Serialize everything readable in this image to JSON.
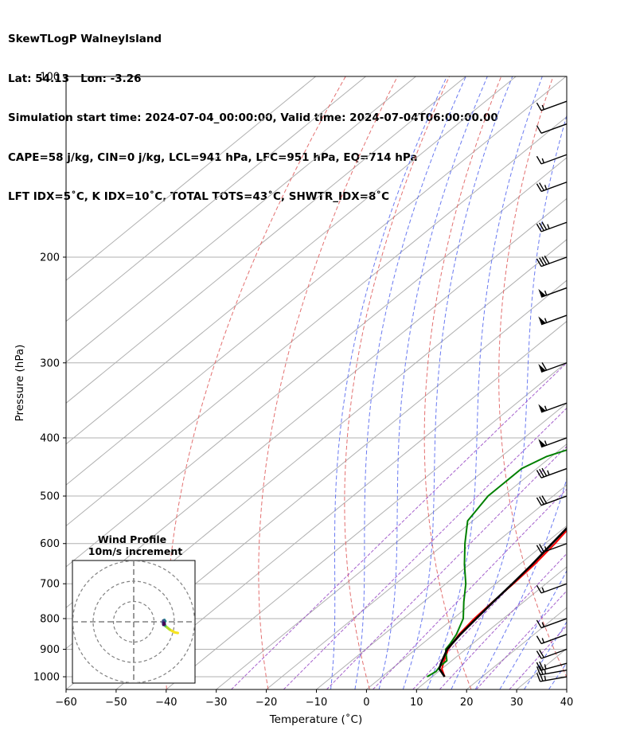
{
  "header": {
    "line1": "SkewTLogP WalneyIsland",
    "line2": "Lat: 54.13   Lon: -3.26",
    "line3": "Simulation start time: 2024-07-04_00:00:00, Valid time: 2024-07-04T06:00:00.00",
    "line4": "CAPE=58 j/kg, CIN=0 j/kg, LCL=941 hPa, LFC=951 hPa, EQ=714 hPa",
    "line5": "LFT IDX=5˚C, K IDX=10˚C, TOTAL TOTS=43˚C, SHWTR_IDX=8˚C"
  },
  "chart_data": {
    "type": "skewt-logp",
    "xlabel": "Temperature (˚C)",
    "ylabel": "Pressure (hPa)",
    "xlim": [
      -60,
      40
    ],
    "ylim": [
      1050,
      100
    ],
    "x_ticks": [
      "−60",
      "−50",
      "−40",
      "−30",
      "−20",
      "−10",
      "0",
      "10",
      "20",
      "30",
      "40"
    ],
    "x_tick_values": [
      -60,
      -50,
      -40,
      -30,
      -20,
      -10,
      0,
      10,
      20,
      30,
      40
    ],
    "y_ticks": [
      "1000",
      "900",
      "800",
      "700",
      "600",
      "500",
      "400",
      "300",
      "200",
      "100"
    ],
    "y_tick_values": [
      1000,
      900,
      800,
      700,
      600,
      500,
      400,
      300,
      200,
      100
    ],
    "temperature_profile": [
      [
        1000,
        12.5
      ],
      [
        970,
        10
      ],
      [
        950,
        9
      ],
      [
        930,
        8
      ],
      [
        900,
        6.5
      ],
      [
        850,
        5
      ],
      [
        800,
        4.2
      ],
      [
        750,
        3.8
      ],
      [
        700,
        3.5
      ],
      [
        650,
        3
      ],
      [
        600,
        2
      ],
      [
        550,
        0.5
      ],
      [
        500,
        -0.5
      ],
      [
        470,
        -0.5
      ],
      [
        440,
        0.5
      ],
      [
        400,
        1
      ],
      [
        370,
        0.5
      ],
      [
        340,
        -0.5
      ],
      [
        310,
        -0.5
      ],
      [
        290,
        -0.5
      ],
      [
        270,
        0.5
      ],
      [
        250,
        2
      ],
      [
        230,
        3
      ],
      [
        200,
        5
      ],
      [
        180,
        7
      ],
      [
        160,
        9
      ],
      [
        140,
        11
      ],
      [
        120,
        13
      ],
      [
        110,
        14
      ],
      [
        100,
        15
      ]
    ],
    "dewpoint_profile": [
      [
        1000,
        9
      ],
      [
        980,
        9.5
      ],
      [
        960,
        9
      ],
      [
        940,
        9
      ],
      [
        900,
        6
      ],
      [
        880,
        5.5
      ],
      [
        850,
        4.5
      ],
      [
        800,
        2
      ],
      [
        750,
        -2
      ],
      [
        700,
        -6
      ],
      [
        650,
        -11
      ],
      [
        600,
        -16
      ],
      [
        550,
        -21
      ],
      [
        500,
        -23
      ],
      [
        450,
        -23
      ],
      [
        430,
        -21
      ],
      [
        400,
        -14
      ],
      [
        380,
        -8
      ],
      [
        360,
        -6
      ],
      [
        340,
        -7
      ],
      [
        310,
        -9
      ],
      [
        300,
        -9.5
      ],
      [
        270,
        -8
      ],
      [
        250,
        -8
      ],
      [
        230,
        -11
      ],
      [
        210,
        -15
      ],
      [
        195,
        -22
      ],
      [
        180,
        -26
      ],
      [
        170,
        -22
      ],
      [
        150,
        -14
      ],
      [
        130,
        -6
      ],
      [
        110,
        2
      ],
      [
        100,
        6
      ]
    ],
    "parcel_profile": [
      [
        1000,
        12.5
      ],
      [
        970,
        9.5
      ],
      [
        950,
        8.5
      ],
      [
        900,
        6.3
      ],
      [
        850,
        5.3
      ],
      [
        800,
        4.6
      ],
      [
        750,
        3.9
      ],
      [
        700,
        3.3
      ],
      [
        650,
        2.5
      ],
      [
        600,
        1.4
      ],
      [
        550,
        0.2
      ],
      [
        500,
        -1.6
      ],
      [
        450,
        -4
      ],
      [
        400,
        -7.5
      ],
      [
        350,
        -12
      ],
      [
        300,
        -17.5
      ],
      [
        250,
        -24
      ],
      [
        200,
        -33
      ],
      [
        150,
        -44
      ],
      [
        100,
        -58
      ]
    ],
    "cape_shading": {
      "color": "#a3c6df",
      "between": [
        "parcel_profile",
        "temperature_profile"
      ],
      "from_hpa": 714,
      "to_hpa": 100
    },
    "cin_shading": {
      "color": "#f08080",
      "from_hpa": 951,
      "to_hpa": 714
    },
    "reference_lines": {
      "isotherms_step_c": 10,
      "dry_adiabats_k": [
        230,
        250,
        270,
        290,
        310,
        330,
        350,
        370,
        390,
        410,
        430
      ],
      "moist_adiabats_c": [
        -10,
        -5,
        0,
        5,
        10,
        15,
        20,
        25,
        30,
        35
      ],
      "mixing_ratios_gkg": [
        0.4,
        1,
        2,
        4,
        7,
        10,
        16,
        24
      ]
    },
    "wind_barbs": [
      {
        "p": 1000,
        "speed_kt": 25,
        "dir_deg": 260
      },
      {
        "p": 975,
        "speed_kt": 25,
        "dir_deg": 260
      },
      {
        "p": 950,
        "speed_kt": 25,
        "dir_deg": 255
      },
      {
        "p": 900,
        "speed_kt": 20,
        "dir_deg": 250
      },
      {
        "p": 850,
        "speed_kt": 15,
        "dir_deg": 250
      },
      {
        "p": 800,
        "speed_kt": 15,
        "dir_deg": 250
      },
      {
        "p": 700,
        "speed_kt": 15,
        "dir_deg": 250
      },
      {
        "p": 600,
        "speed_kt": 25,
        "dir_deg": 250
      },
      {
        "p": 500,
        "speed_kt": 30,
        "dir_deg": 250
      },
      {
        "p": 450,
        "speed_kt": 35,
        "dir_deg": 250
      },
      {
        "p": 400,
        "speed_kt": 55,
        "dir_deg": 250
      },
      {
        "p": 350,
        "speed_kt": 55,
        "dir_deg": 250
      },
      {
        "p": 300,
        "speed_kt": 60,
        "dir_deg": 250
      },
      {
        "p": 250,
        "speed_kt": 55,
        "dir_deg": 250
      },
      {
        "p": 225,
        "speed_kt": 55,
        "dir_deg": 250
      },
      {
        "p": 200,
        "speed_kt": 40,
        "dir_deg": 250
      },
      {
        "p": 175,
        "speed_kt": 35,
        "dir_deg": 250
      },
      {
        "p": 150,
        "speed_kt": 25,
        "dir_deg": 250
      },
      {
        "p": 135,
        "speed_kt": 15,
        "dir_deg": 250
      },
      {
        "p": 120,
        "speed_kt": 10,
        "dir_deg": 250
      },
      {
        "p": 110,
        "speed_kt": 15,
        "dir_deg": 250
      }
    ],
    "hodograph": {
      "title": "Wind Profile",
      "subtitle": "10m/s increment",
      "rings_ms": [
        10,
        20,
        30
      ],
      "points_ms": [
        [
          8.0,
          -5.5
        ],
        [
          6.5,
          -5.2
        ],
        [
          5.2,
          -4.5
        ],
        [
          4.0,
          -3.8
        ],
        [
          3.0,
          -3.0
        ],
        [
          1.8,
          -2.0
        ],
        [
          1.3,
          -1.0
        ],
        [
          1.5,
          -0.3
        ],
        [
          1.8,
          0.3
        ],
        [
          1.4,
          0.9
        ],
        [
          0.8,
          0.6
        ],
        [
          0.6,
          -0.2
        ],
        [
          0.9,
          -1.5
        ],
        [
          1.5,
          -1.2
        ],
        [
          1.2,
          -0.4
        ]
      ],
      "colormap": [
        "#f7e41f",
        "#b5de2b",
        "#35b779",
        "#26828e",
        "#3e4a89",
        "#440154"
      ]
    }
  }
}
